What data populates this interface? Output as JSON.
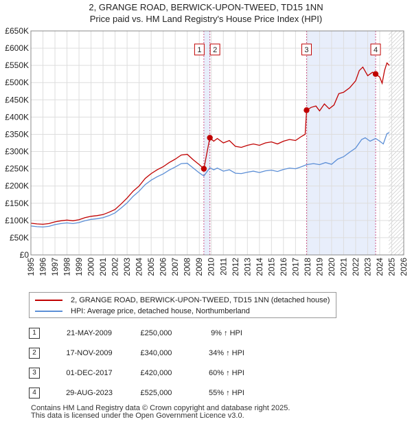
{
  "title": "2, GRANGE ROAD, BERWICK-UPON-TWEED, TD15 1NN",
  "subtitle": "Price paid vs. HM Land Registry's House Price Index (HPI)",
  "chart_data": {
    "type": "line",
    "title": "2, GRANGE ROAD, BERWICK-UPON-TWEED, TD15 1NN",
    "subtitle": "Price paid vs. HM Land Registry's House Price Index (HPI)",
    "xlim": [
      1995,
      2026
    ],
    "ylim": [
      0,
      650000
    ],
    "x_ticks": [
      1995,
      1996,
      1997,
      1998,
      1999,
      2000,
      2001,
      2002,
      2003,
      2004,
      2005,
      2006,
      2007,
      2008,
      2009,
      2010,
      2011,
      2012,
      2013,
      2014,
      2015,
      2016,
      2017,
      2018,
      2019,
      2020,
      2021,
      2022,
      2023,
      2024,
      2025,
      2026
    ],
    "y_ticks": [
      0,
      50000,
      100000,
      150000,
      200000,
      250000,
      300000,
      350000,
      400000,
      450000,
      500000,
      550000,
      600000,
      650000
    ],
    "y_tick_labels": [
      "£0",
      "£50K",
      "£100K",
      "£150K",
      "£200K",
      "£250K",
      "£300K",
      "£350K",
      "£400K",
      "£450K",
      "£500K",
      "£550K",
      "£600K",
      "£650K"
    ],
    "grid": true,
    "colors": {
      "property": "#c00000",
      "hpi": "#5b8ed6",
      "highlight": "#e8eefb",
      "vline": "#cc5588",
      "future_hatch": "#aaaaaa"
    },
    "highlight_spans": [
      [
        2009.38,
        2009.88
      ],
      [
        2017.92,
        2023.66
      ]
    ],
    "future_from": 2024.75,
    "series": [
      {
        "name": "2, GRANGE ROAD, BERWICK-UPON-TWEED, TD15 1NN (detached house)",
        "color": "#c00000",
        "points": [
          [
            1995.0,
            92000
          ],
          [
            1995.5,
            90000
          ],
          [
            1996.0,
            89000
          ],
          [
            1996.5,
            91000
          ],
          [
            1997.0,
            96000
          ],
          [
            1997.5,
            99000
          ],
          [
            1998.0,
            101000
          ],
          [
            1998.5,
            99000
          ],
          [
            1999.0,
            102000
          ],
          [
            1999.5,
            108000
          ],
          [
            2000.0,
            112000
          ],
          [
            2000.5,
            114000
          ],
          [
            2001.0,
            117000
          ],
          [
            2001.5,
            124000
          ],
          [
            2002.0,
            132000
          ],
          [
            2002.5,
            148000
          ],
          [
            2003.0,
            165000
          ],
          [
            2003.5,
            185000
          ],
          [
            2004.0,
            200000
          ],
          [
            2004.5,
            222000
          ],
          [
            2005.0,
            236000
          ],
          [
            2005.5,
            247000
          ],
          [
            2006.0,
            256000
          ],
          [
            2006.5,
            268000
          ],
          [
            2007.0,
            278000
          ],
          [
            2007.5,
            290000
          ],
          [
            2008.0,
            292000
          ],
          [
            2008.5,
            276000
          ],
          [
            2009.0,
            262000
          ],
          [
            2009.38,
            250000
          ],
          [
            2009.88,
            340000
          ],
          [
            2010.2,
            330000
          ],
          [
            2010.5,
            338000
          ],
          [
            2011.0,
            325000
          ],
          [
            2011.5,
            332000
          ],
          [
            2012.0,
            315000
          ],
          [
            2012.5,
            312000
          ],
          [
            2013.0,
            318000
          ],
          [
            2013.5,
            322000
          ],
          [
            2014.0,
            318000
          ],
          [
            2014.5,
            325000
          ],
          [
            2015.0,
            328000
          ],
          [
            2015.5,
            322000
          ],
          [
            2016.0,
            330000
          ],
          [
            2016.5,
            335000
          ],
          [
            2017.0,
            332000
          ],
          [
            2017.5,
            344000
          ],
          [
            2017.8,
            350000
          ],
          [
            2017.92,
            420000
          ],
          [
            2018.3,
            428000
          ],
          [
            2018.7,
            432000
          ],
          [
            2019.0,
            418000
          ],
          [
            2019.4,
            438000
          ],
          [
            2019.8,
            424000
          ],
          [
            2020.2,
            435000
          ],
          [
            2020.6,
            468000
          ],
          [
            2021.0,
            472000
          ],
          [
            2021.5,
            485000
          ],
          [
            2022.0,
            505000
          ],
          [
            2022.3,
            535000
          ],
          [
            2022.6,
            545000
          ],
          [
            2023.0,
            520000
          ],
          [
            2023.4,
            530000
          ],
          [
            2023.66,
            525000
          ],
          [
            2024.0,
            516000
          ],
          [
            2024.2,
            498000
          ],
          [
            2024.4,
            535000
          ],
          [
            2024.6,
            557000
          ],
          [
            2024.8,
            550000
          ]
        ]
      },
      {
        "name": "HPI: Average price, detached house, Northumberland",
        "color": "#5b8ed6",
        "points": [
          [
            1995.0,
            84000
          ],
          [
            1995.5,
            82000
          ],
          [
            1996.0,
            81000
          ],
          [
            1996.5,
            83000
          ],
          [
            1997.0,
            88000
          ],
          [
            1997.5,
            91000
          ],
          [
            1998.0,
            93000
          ],
          [
            1998.5,
            91000
          ],
          [
            1999.0,
            94000
          ],
          [
            1999.5,
            99000
          ],
          [
            2000.0,
            103000
          ],
          [
            2000.5,
            105000
          ],
          [
            2001.0,
            108000
          ],
          [
            2001.5,
            114000
          ],
          [
            2002.0,
            122000
          ],
          [
            2002.5,
            136000
          ],
          [
            2003.0,
            151000
          ],
          [
            2003.5,
            170000
          ],
          [
            2004.0,
            185000
          ],
          [
            2004.5,
            204000
          ],
          [
            2005.0,
            217000
          ],
          [
            2005.5,
            227000
          ],
          [
            2006.0,
            235000
          ],
          [
            2006.5,
            246000
          ],
          [
            2007.0,
            255000
          ],
          [
            2007.5,
            265000
          ],
          [
            2008.0,
            266000
          ],
          [
            2008.5,
            252000
          ],
          [
            2009.0,
            238000
          ],
          [
            2009.38,
            229000
          ],
          [
            2009.88,
            253000
          ],
          [
            2010.2,
            247000
          ],
          [
            2010.5,
            252000
          ],
          [
            2011.0,
            243000
          ],
          [
            2011.5,
            247000
          ],
          [
            2012.0,
            237000
          ],
          [
            2012.5,
            236000
          ],
          [
            2013.0,
            240000
          ],
          [
            2013.5,
            243000
          ],
          [
            2014.0,
            239000
          ],
          [
            2014.5,
            244000
          ],
          [
            2015.0,
            246000
          ],
          [
            2015.5,
            242000
          ],
          [
            2016.0,
            248000
          ],
          [
            2016.5,
            252000
          ],
          [
            2017.0,
            250000
          ],
          [
            2017.5,
            256000
          ],
          [
            2017.92,
            262000
          ],
          [
            2018.5,
            265000
          ],
          [
            2019.0,
            262000
          ],
          [
            2019.5,
            268000
          ],
          [
            2020.0,
            263000
          ],
          [
            2020.5,
            278000
          ],
          [
            2021.0,
            285000
          ],
          [
            2021.5,
            298000
          ],
          [
            2022.0,
            310000
          ],
          [
            2022.5,
            335000
          ],
          [
            2022.8,
            340000
          ],
          [
            2023.2,
            330000
          ],
          [
            2023.66,
            338000
          ],
          [
            2024.0,
            330000
          ],
          [
            2024.3,
            322000
          ],
          [
            2024.6,
            352000
          ],
          [
            2024.8,
            355000
          ]
        ]
      }
    ],
    "markers": [
      {
        "label": "1",
        "x": 2009.38,
        "y": 250000
      },
      {
        "label": "2",
        "x": 2009.88,
        "y": 340000
      },
      {
        "label": "3",
        "x": 2017.92,
        "y": 420000
      },
      {
        "label": "4",
        "x": 2023.66,
        "y": 525000
      }
    ]
  },
  "legend": {
    "property_label": "2, GRANGE ROAD, BERWICK-UPON-TWEED, TD15 1NN (detached house)",
    "hpi_label": "HPI: Average price, detached house, Northumberland"
  },
  "transactions": [
    {
      "num": "1",
      "date": "21-MAY-2009",
      "price": "£250,000",
      "hpi": "9% ↑ HPI"
    },
    {
      "num": "2",
      "date": "17-NOV-2009",
      "price": "£340,000",
      "hpi": "34% ↑ HPI"
    },
    {
      "num": "3",
      "date": "01-DEC-2017",
      "price": "£420,000",
      "hpi": "60% ↑ HPI"
    },
    {
      "num": "4",
      "date": "29-AUG-2023",
      "price": "£525,000",
      "hpi": "55% ↑ HPI"
    }
  ],
  "footer": {
    "line1": "Contains HM Land Registry data © Crown copyright and database right 2025.",
    "line2": "This data is licensed under the Open Government Licence v3.0."
  }
}
